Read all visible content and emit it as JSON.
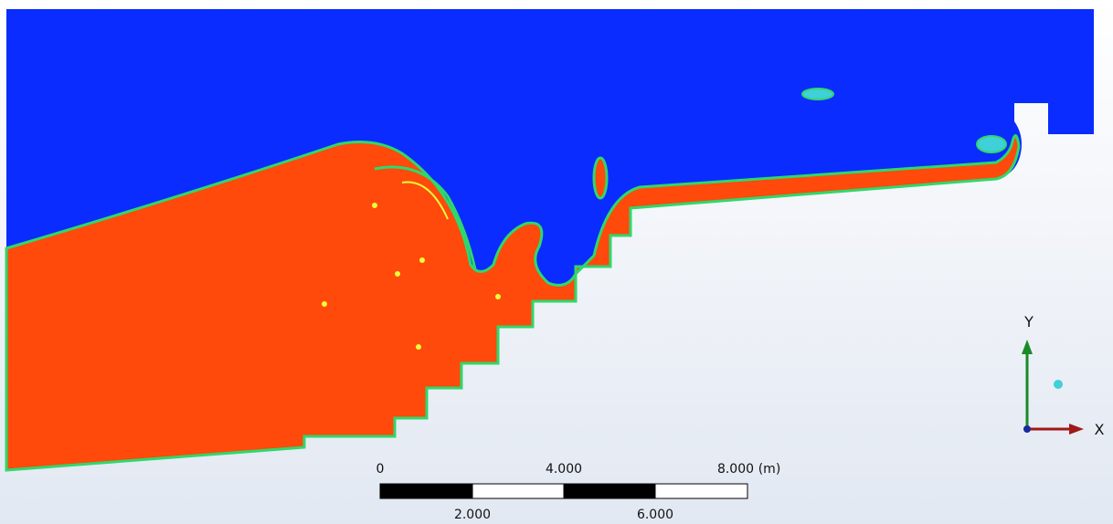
{
  "scale_bar": {
    "top_labels": [
      "0",
      "4.000",
      "8.000"
    ],
    "unit": "(m)",
    "bottom_labels": [
      "2.000",
      "6.000"
    ]
  },
  "axes": {
    "y_label": "Y",
    "x_label": "X"
  }
}
